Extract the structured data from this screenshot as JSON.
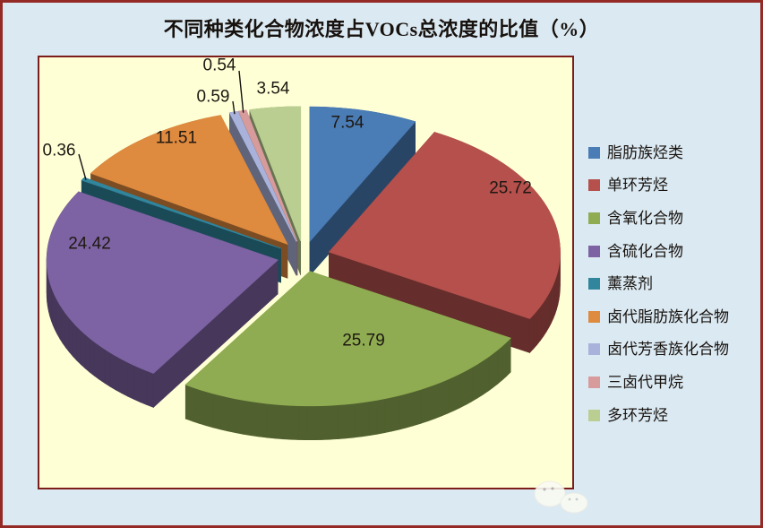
{
  "chart_data": {
    "type": "pie",
    "style": "3d-exploded",
    "title": "不同种类化合物浓度占VOCs总浓度的比值（%）",
    "unit": "%",
    "start_angle_deg": 0,
    "direction": "clockwise",
    "legend_position": "right",
    "categories": [
      "脂肪族烃类",
      "单环芳烃",
      "含氧化合物",
      "含硫化合物",
      "薰蒸剂",
      "卤代脂肪族化合物",
      "卤代芳香族化合物",
      "三卤代甲烷",
      "多环芳烃"
    ],
    "values": [
      7.54,
      25.72,
      25.79,
      24.42,
      0.36,
      11.51,
      0.59,
      0.54,
      3.54
    ],
    "data_labels": [
      "7.54",
      "25.72",
      "25.79",
      "24.42",
      "0.36",
      "11.51",
      "0.59",
      "0.54",
      "3.54"
    ],
    "colors": [
      "#4A7CB5",
      "#B5504C",
      "#8FAC52",
      "#7D63A3",
      "#31859C",
      "#DE8A3F",
      "#A9B2DA",
      "#D89B9B",
      "#BACE92"
    ]
  },
  "theme": {
    "page_bg": "#DBE9F2",
    "frame_color": "#942A26",
    "plot_bg": "#FFFFD6",
    "plot_border_color": "#7D1D1B",
    "title_color": "#17120E",
    "legend_text_color": "#17120E",
    "label_color": "#1E1812",
    "leader_line_color": "#141210"
  }
}
